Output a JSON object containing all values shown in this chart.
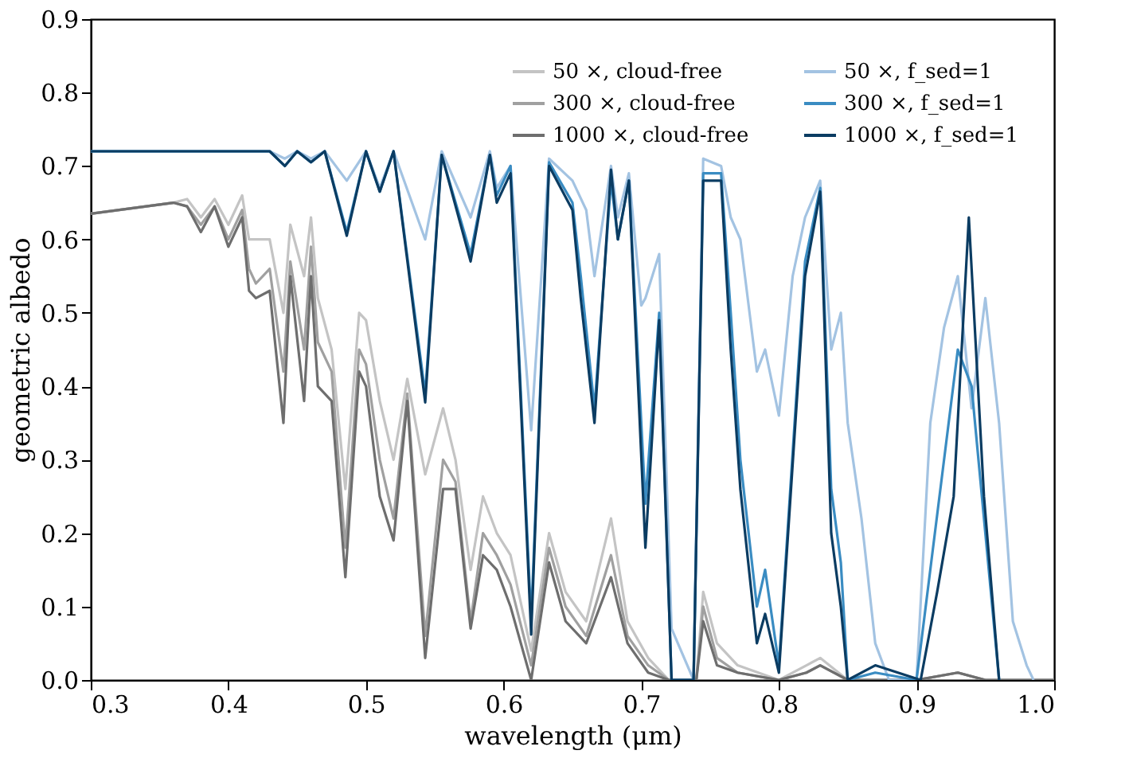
{
  "chart_data": {
    "type": "line",
    "xlabel": "wavelength (μm)",
    "ylabel": "geometric albedo",
    "xlim": [
      0.3,
      1.0
    ],
    "xticks": [
      0.3,
      0.4,
      0.5,
      0.6,
      0.7,
      0.8,
      0.9,
      {
        "value": 1,
        "label": "1.0"
      }
    ],
    "ylim": [
      0,
      0.9
    ],
    "yticks": [
      {
        "value": 0,
        "label": "0.0"
      },
      0.1,
      0.2,
      0.3,
      0.4,
      0.5,
      0.6,
      0.7,
      0.8,
      0.9
    ],
    "grid": false,
    "legend": "top right",
    "marker": "none",
    "line_style": "solid",
    "series": [
      {
        "name": "50 ×, cloud-free",
        "color": "#c4c4c4",
        "x": [
          0.3,
          0.36,
          0.37,
          0.38,
          0.39,
          0.4,
          0.41,
          0.415,
          0.42,
          0.43,
          0.44,
          0.445,
          0.455,
          0.46,
          0.465,
          0.475,
          0.485,
          0.495,
          0.5,
          0.51,
          0.52,
          0.53,
          0.543,
          0.556,
          0.565,
          0.576,
          0.585,
          0.595,
          0.605,
          0.62,
          0.633,
          0.645,
          0.66,
          0.678,
          0.69,
          0.705,
          0.72,
          0.74,
          0.745,
          0.755,
          0.77,
          0.8,
          0.82,
          0.83,
          0.85,
          0.9,
          0.93,
          0.95,
          1.0
        ],
        "values": [
          0.635,
          0.65,
          0.655,
          0.63,
          0.655,
          0.62,
          0.66,
          0.6,
          0.6,
          0.6,
          0.5,
          0.62,
          0.55,
          0.63,
          0.52,
          0.45,
          0.26,
          0.5,
          0.49,
          0.38,
          0.3,
          0.41,
          0.28,
          0.37,
          0.3,
          0.15,
          0.25,
          0.2,
          0.17,
          0.04,
          0.2,
          0.12,
          0.08,
          0.22,
          0.08,
          0.03,
          0.0,
          0.0,
          0.12,
          0.05,
          0.02,
          0.0,
          0.02,
          0.03,
          0.0,
          0.0,
          0.01,
          0.0,
          0.0
        ]
      },
      {
        "name": "300 ×, cloud-free",
        "color": "#a0a0a0",
        "x": [
          0.3,
          0.36,
          0.37,
          0.38,
          0.39,
          0.4,
          0.41,
          0.415,
          0.42,
          0.43,
          0.44,
          0.445,
          0.455,
          0.46,
          0.465,
          0.475,
          0.485,
          0.495,
          0.5,
          0.51,
          0.52,
          0.53,
          0.543,
          0.556,
          0.565,
          0.576,
          0.585,
          0.595,
          0.605,
          0.62,
          0.633,
          0.645,
          0.66,
          0.678,
          0.69,
          0.705,
          0.72,
          0.74,
          0.745,
          0.755,
          0.77,
          0.8,
          0.82,
          0.83,
          0.85,
          0.9,
          0.93,
          0.95,
          1.0
        ],
        "values": [
          0.635,
          0.65,
          0.645,
          0.62,
          0.645,
          0.6,
          0.64,
          0.56,
          0.54,
          0.56,
          0.42,
          0.57,
          0.45,
          0.59,
          0.46,
          0.42,
          0.18,
          0.45,
          0.43,
          0.3,
          0.22,
          0.39,
          0.06,
          0.3,
          0.27,
          0.08,
          0.2,
          0.17,
          0.13,
          0.02,
          0.18,
          0.1,
          0.06,
          0.17,
          0.06,
          0.02,
          0.0,
          0.0,
          0.1,
          0.03,
          0.01,
          0.0,
          0.01,
          0.02,
          0.0,
          0.0,
          0.01,
          0.0,
          0.0
        ]
      },
      {
        "name": "1000 ×, cloud-free",
        "color": "#6e6e6e",
        "x": [
          0.3,
          0.36,
          0.37,
          0.38,
          0.39,
          0.4,
          0.41,
          0.415,
          0.42,
          0.43,
          0.44,
          0.445,
          0.455,
          0.46,
          0.465,
          0.475,
          0.485,
          0.495,
          0.5,
          0.51,
          0.52,
          0.53,
          0.543,
          0.556,
          0.565,
          0.576,
          0.585,
          0.595,
          0.605,
          0.62,
          0.633,
          0.645,
          0.66,
          0.678,
          0.69,
          0.705,
          0.72,
          0.74,
          0.745,
          0.755,
          0.77,
          0.8,
          0.82,
          0.83,
          0.85,
          0.9,
          0.93,
          0.95,
          1.0
        ],
        "values": [
          0.635,
          0.65,
          0.645,
          0.61,
          0.645,
          0.59,
          0.63,
          0.53,
          0.52,
          0.53,
          0.35,
          0.55,
          0.38,
          0.55,
          0.4,
          0.38,
          0.14,
          0.42,
          0.4,
          0.25,
          0.19,
          0.38,
          0.03,
          0.26,
          0.26,
          0.07,
          0.17,
          0.15,
          0.1,
          0.0,
          0.16,
          0.08,
          0.05,
          0.14,
          0.05,
          0.01,
          0.0,
          0.0,
          0.08,
          0.02,
          0.01,
          0.0,
          0.01,
          0.02,
          0.0,
          0.0,
          0.01,
          0.0,
          0.0
        ]
      },
      {
        "name": "50 ×, f_sed=1",
        "color": "#a3c3e2",
        "x": [
          0.3,
          0.43,
          0.441,
          0.45,
          0.46,
          0.47,
          0.486,
          0.5,
          0.51,
          0.52,
          0.543,
          0.555,
          0.576,
          0.59,
          0.595,
          0.605,
          0.62,
          0.633,
          0.65,
          0.66,
          0.666,
          0.678,
          0.683,
          0.691,
          0.7,
          0.703,
          0.713,
          0.722,
          0.738,
          0.745,
          0.758,
          0.765,
          0.772,
          0.784,
          0.79,
          0.8,
          0.81,
          0.819,
          0.83,
          0.838,
          0.845,
          0.85,
          0.86,
          0.87,
          0.88,
          0.9,
          0.91,
          0.92,
          0.93,
          0.94,
          0.95,
          0.96,
          0.97,
          0.98,
          0.985
        ],
        "values": [
          0.72,
          0.72,
          0.71,
          0.72,
          0.71,
          0.72,
          0.68,
          0.72,
          0.67,
          0.72,
          0.6,
          0.72,
          0.63,
          0.72,
          0.67,
          0.7,
          0.34,
          0.71,
          0.68,
          0.64,
          0.55,
          0.7,
          0.63,
          0.69,
          0.51,
          0.52,
          0.58,
          0.07,
          0.0,
          0.71,
          0.7,
          0.63,
          0.6,
          0.42,
          0.45,
          0.36,
          0.55,
          0.63,
          0.68,
          0.45,
          0.5,
          0.35,
          0.22,
          0.05,
          0.0,
          0.0,
          0.35,
          0.48,
          0.55,
          0.37,
          0.52,
          0.35,
          0.08,
          0.02,
          0.0
        ]
      },
      {
        "name": "300 ×, f_sed=1",
        "color": "#3a8cc2",
        "x": [
          0.3,
          0.43,
          0.441,
          0.45,
          0.46,
          0.47,
          0.486,
          0.5,
          0.51,
          0.52,
          0.543,
          0.555,
          0.576,
          0.59,
          0.595,
          0.605,
          0.62,
          0.633,
          0.65,
          0.656,
          0.666,
          0.678,
          0.683,
          0.691,
          0.703,
          0.713,
          0.722,
          0.738,
          0.745,
          0.758,
          0.765,
          0.772,
          0.784,
          0.79,
          0.8,
          0.819,
          0.83,
          0.838,
          0.845,
          0.85,
          0.87,
          0.9,
          0.91,
          0.92,
          0.93,
          0.94,
          0.95,
          0.96
        ],
        "values": [
          0.72,
          0.72,
          0.7,
          0.72,
          0.705,
          0.72,
          0.61,
          0.72,
          0.665,
          0.72,
          0.39,
          0.715,
          0.58,
          0.715,
          0.66,
          0.7,
          0.08,
          0.705,
          0.65,
          0.55,
          0.37,
          0.68,
          0.6,
          0.68,
          0.24,
          0.5,
          0.0,
          0.0,
          0.69,
          0.69,
          0.5,
          0.3,
          0.1,
          0.15,
          0.02,
          0.57,
          0.67,
          0.26,
          0.16,
          0.0,
          0.01,
          0.0,
          0.15,
          0.3,
          0.45,
          0.4,
          0.2,
          0.0
        ]
      },
      {
        "name": "1000 ×, f_sed=1",
        "color": "#0b3c62",
        "x": [
          0.3,
          0.43,
          0.441,
          0.45,
          0.46,
          0.47,
          0.486,
          0.5,
          0.51,
          0.52,
          0.543,
          0.555,
          0.576,
          0.59,
          0.595,
          0.605,
          0.62,
          0.633,
          0.65,
          0.656,
          0.666,
          0.678,
          0.683,
          0.691,
          0.703,
          0.713,
          0.722,
          0.738,
          0.745,
          0.758,
          0.765,
          0.772,
          0.784,
          0.79,
          0.8,
          0.819,
          0.83,
          0.838,
          0.845,
          0.85,
          0.87,
          0.903,
          0.915,
          0.927,
          0.938,
          0.949,
          0.96
        ],
        "values": [
          0.72,
          0.72,
          0.7,
          0.72,
          0.705,
          0.72,
          0.605,
          0.72,
          0.665,
          0.72,
          0.378,
          0.715,
          0.57,
          0.715,
          0.65,
          0.69,
          0.062,
          0.7,
          0.64,
          0.52,
          0.35,
          0.695,
          0.6,
          0.68,
          0.18,
          0.49,
          0.0,
          0.0,
          0.68,
          0.68,
          0.45,
          0.26,
          0.05,
          0.09,
          0.01,
          0.55,
          0.665,
          0.2,
          0.1,
          0.0,
          0.02,
          0.0,
          0.12,
          0.25,
          0.63,
          0.25,
          0.0
        ]
      }
    ]
  }
}
